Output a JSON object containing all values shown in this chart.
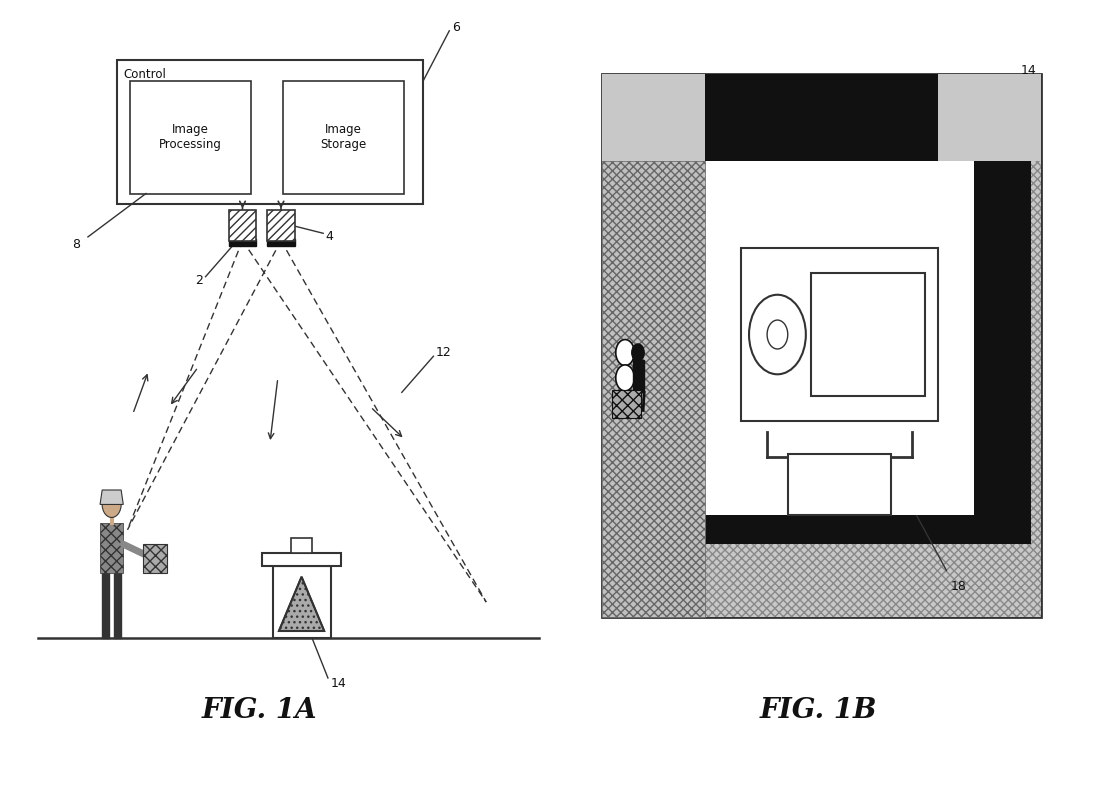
{
  "background_color": "#ffffff",
  "fig_width": 10.99,
  "fig_height": 7.86,
  "fig1a_label": "FIG. 1A",
  "fig1b_label": "FIG. 1B",
  "labels": {
    "control_box": "Control",
    "img_processing": "Image\nProcessing",
    "img_storage": "Image\nStorage",
    "ref2": "2",
    "ref4": "4",
    "ref6": "6",
    "ref8": "8",
    "ref12": "12",
    "ref14_1a": "14",
    "ref14_1b": "14",
    "ref18": "18"
  },
  "text_color": "#111111",
  "line_color": "#333333",
  "dark_fill": "#111111",
  "med_gray": "#777777",
  "light_gray": "#cccccc"
}
